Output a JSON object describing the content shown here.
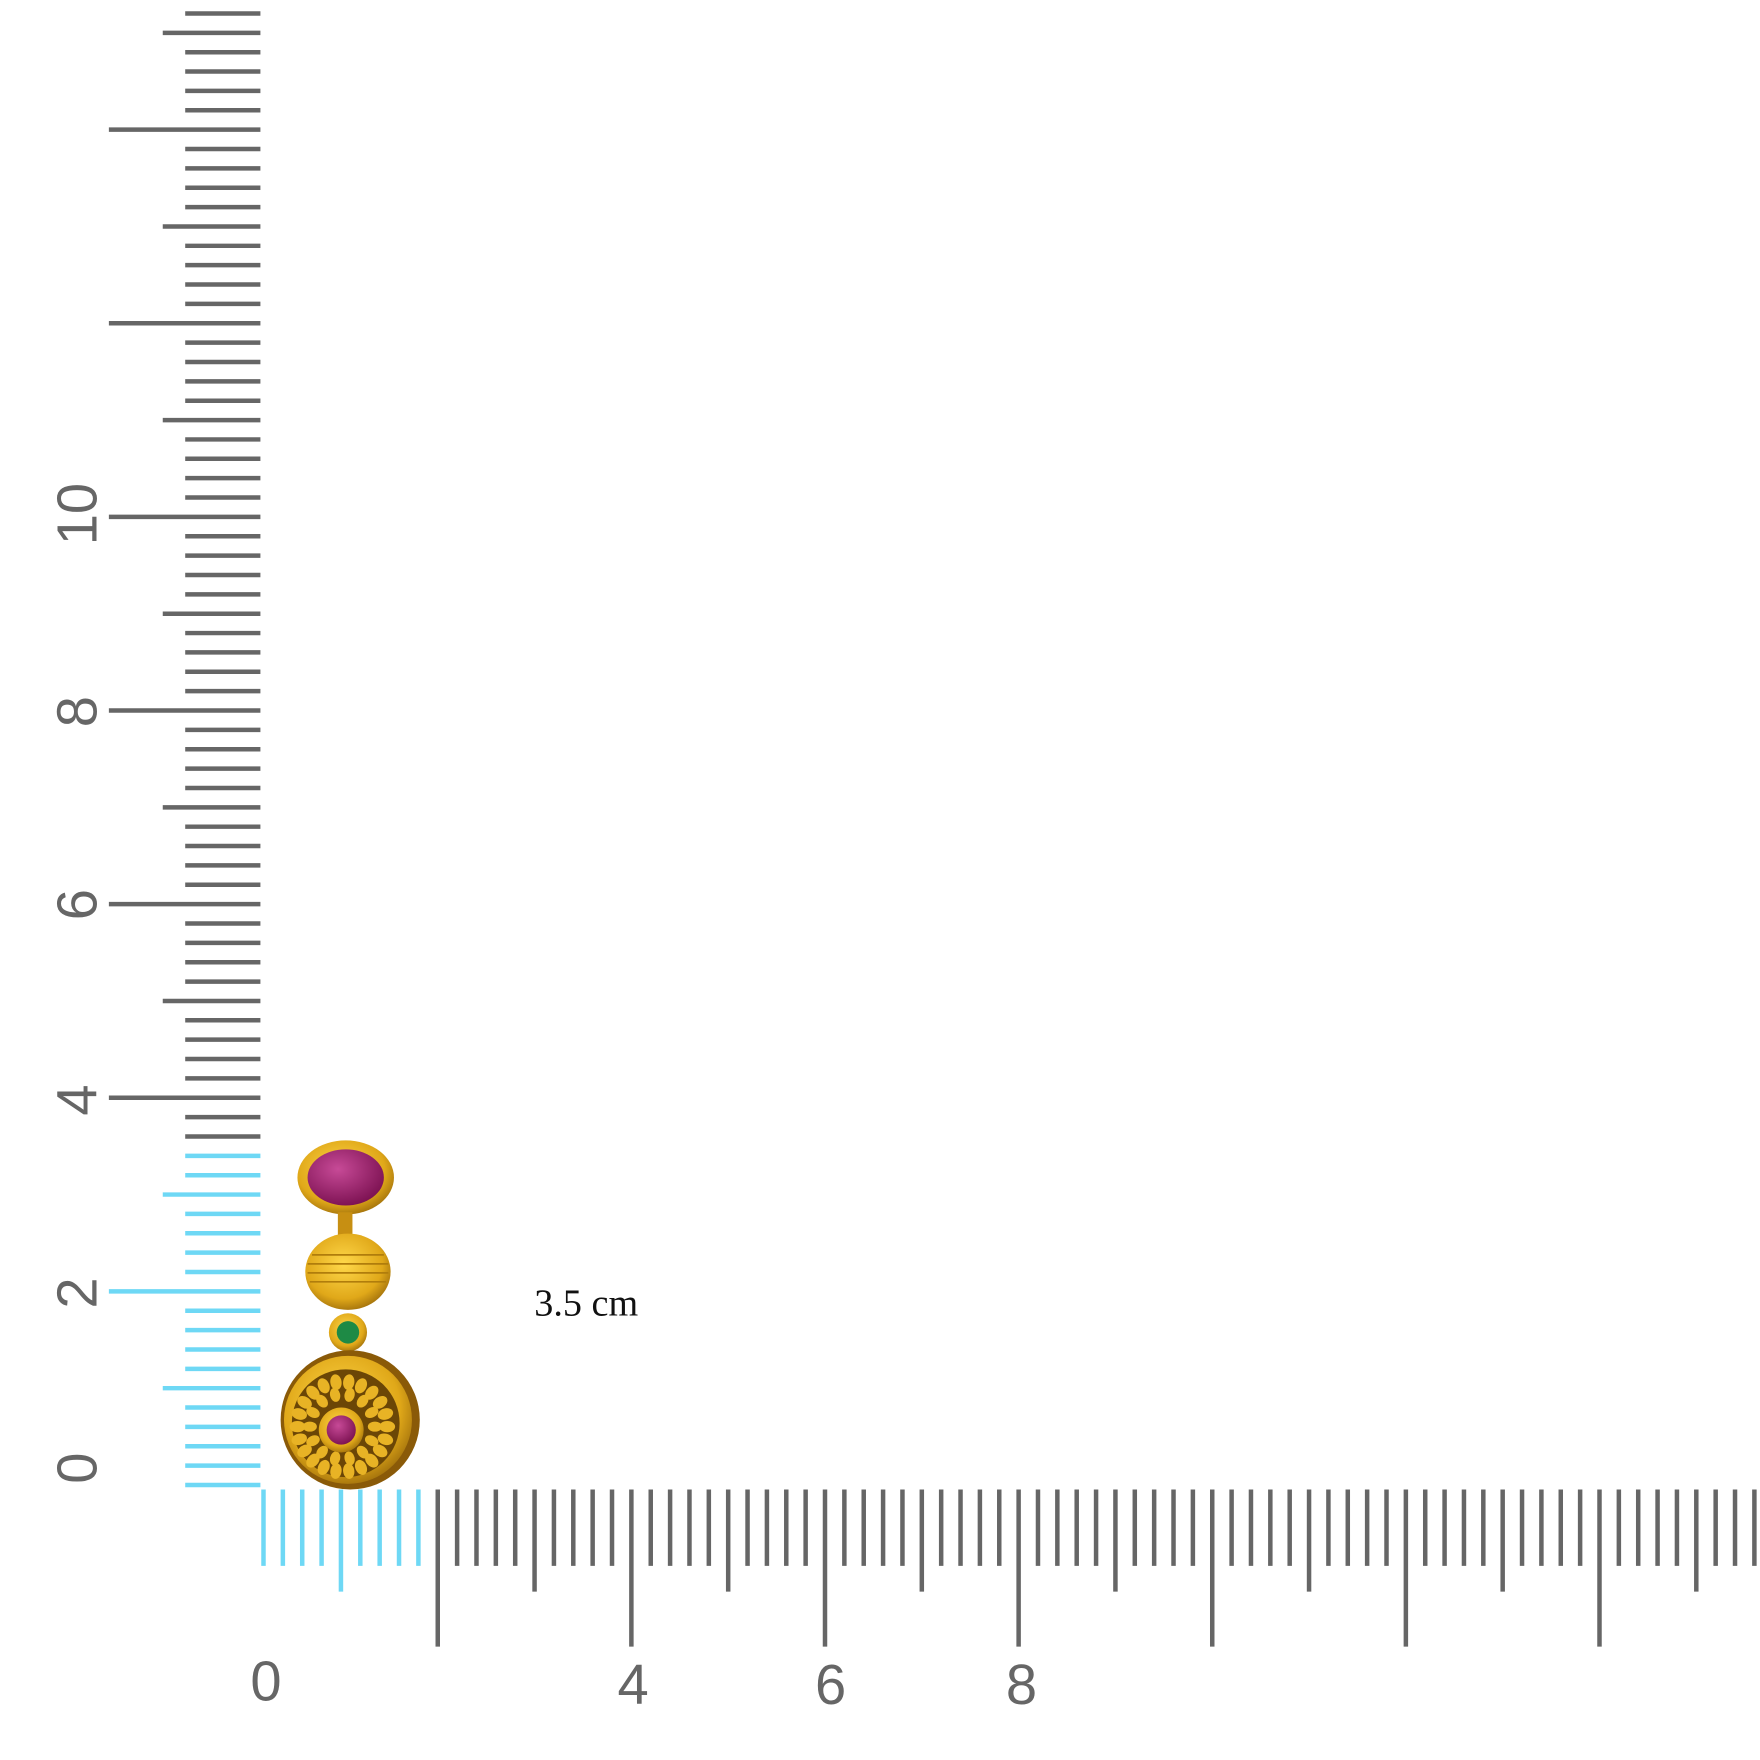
{
  "ruler": {
    "unit_label": "3.5 cm",
    "vertical_labels": [
      "0",
      "2",
      "4",
      "6",
      "8",
      "10"
    ],
    "horizontal_labels": [
      "0",
      "4",
      "6",
      "8"
    ],
    "highlight_length_cm": 3.5,
    "colors": {
      "tick": "#666666",
      "highlight": "#6ed8f5"
    }
  },
  "product": {
    "name_icon": "earring-image",
    "colors": {
      "gold": "#e0a819",
      "ruby": "#a3236f",
      "emerald": "#1e8a45"
    }
  }
}
